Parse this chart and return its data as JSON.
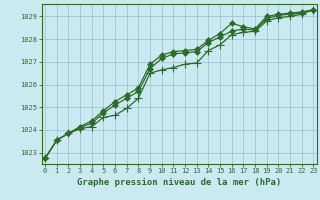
{
  "title": "Graphe pression niveau de la mer (hPa)",
  "bg_color": "#cbe9f0",
  "grid_color": "#99bfcc",
  "line_color": "#2d6b2d",
  "x_ticks": [
    0,
    1,
    2,
    3,
    4,
    5,
    6,
    7,
    8,
    9,
    10,
    11,
    12,
    13,
    14,
    15,
    16,
    17,
    18,
    19,
    20,
    21,
    22,
    23
  ],
  "y_ticks": [
    1023,
    1024,
    1025,
    1026,
    1027,
    1028,
    1029
  ],
  "ylim": [
    1022.5,
    1029.55
  ],
  "xlim": [
    -0.3,
    23.3
  ],
  "line1": [
    1022.75,
    1023.55,
    1023.85,
    1024.15,
    1024.4,
    1024.85,
    1025.25,
    1025.55,
    1025.85,
    1026.9,
    1027.3,
    1027.45,
    1027.5,
    1027.55,
    1027.95,
    1028.25,
    1028.7,
    1028.55,
    1028.45,
    1029.0,
    1029.1,
    1029.15,
    1029.2,
    1029.3
  ],
  "line2": [
    1022.75,
    1023.55,
    1023.85,
    1024.1,
    1024.3,
    1024.75,
    1025.1,
    1025.4,
    1025.7,
    1026.7,
    1027.15,
    1027.35,
    1027.4,
    1027.45,
    1027.85,
    1028.1,
    1028.35,
    1028.45,
    1028.4,
    1028.9,
    1029.05,
    1029.1,
    1029.15,
    1029.3
  ],
  "line3": [
    1022.75,
    1023.55,
    1023.85,
    1024.05,
    1024.15,
    1024.55,
    1024.65,
    1024.95,
    1025.4,
    1026.5,
    1026.65,
    1026.75,
    1026.9,
    1026.95,
    1027.5,
    1027.75,
    1028.2,
    1028.3,
    1028.35,
    1028.8,
    1028.95,
    1029.0,
    1029.1,
    1029.3
  ],
  "marker_size": 3.5,
  "linewidth": 0.9,
  "title_fontsize": 6.5,
  "tick_fontsize": 5.0
}
